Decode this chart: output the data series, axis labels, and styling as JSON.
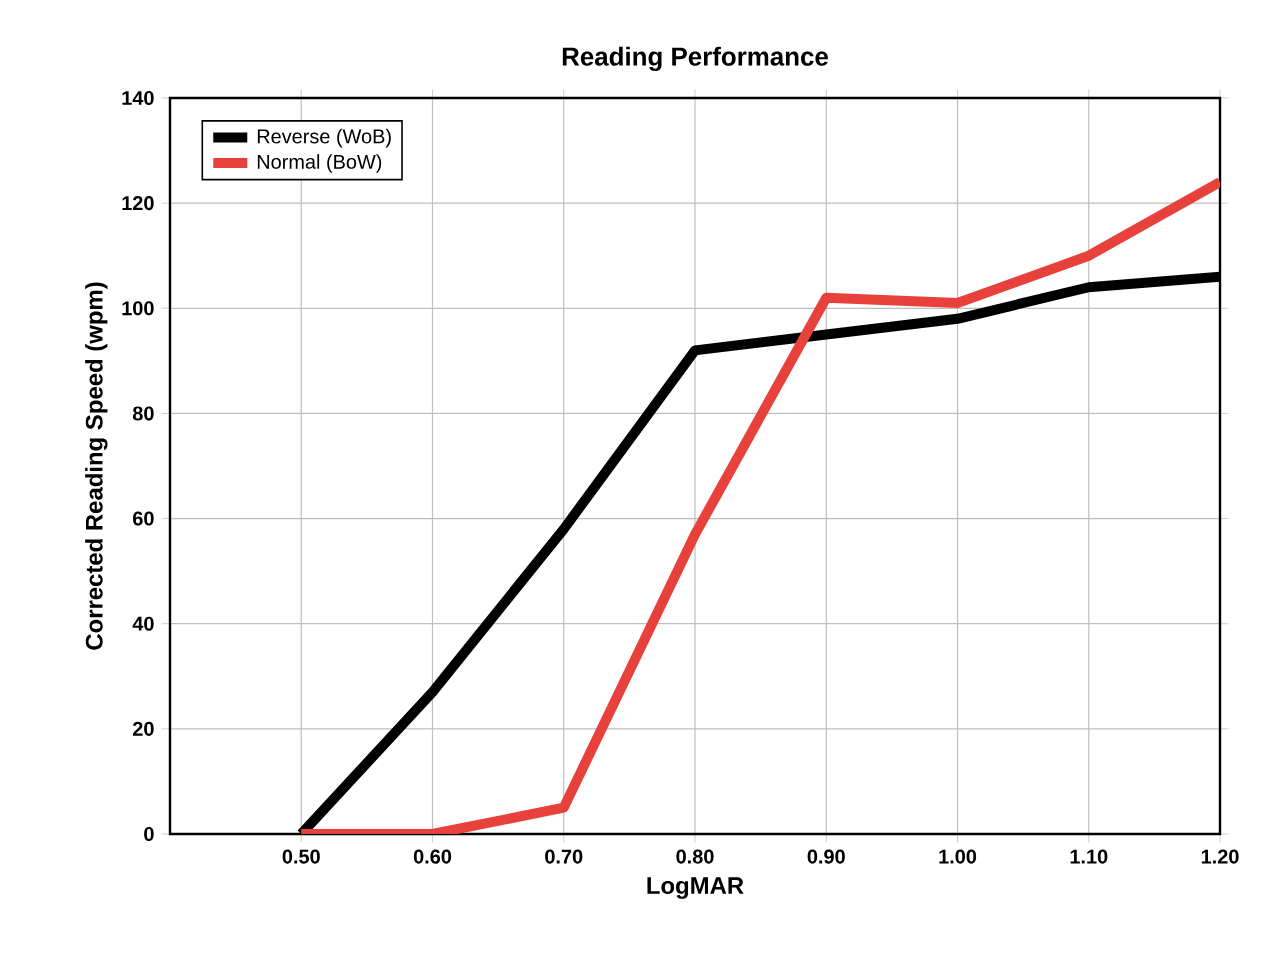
{
  "chart_data": {
    "type": "line",
    "title": "Reading Performance",
    "xlabel": "LogMAR",
    "ylabel": "Corrected Reading Speed (wpm)",
    "x": [
      0.5,
      0.6,
      0.7,
      0.8,
      0.9,
      1.0,
      1.1,
      1.2
    ],
    "series": [
      {
        "name": "Reverse (WoB)",
        "color": "#000000",
        "values": [
          0,
          27,
          58,
          92,
          95,
          98,
          104,
          106
        ]
      },
      {
        "name": "Normal (BoW)",
        "color": "#e8413c",
        "values": [
          0,
          0,
          5,
          57,
          102,
          101,
          110,
          124
        ]
      }
    ],
    "xlim": [
      0.4,
      1.2
    ],
    "ylim": [
      0,
      140
    ],
    "xticks": [
      {
        "value": 0.5,
        "label": "0.50"
      },
      {
        "value": 0.6,
        "label": "0.60"
      },
      {
        "value": 0.7,
        "label": "0.70"
      },
      {
        "value": 0.8,
        "label": "0.80"
      },
      {
        "value": 0.9,
        "label": "0.90"
      },
      {
        "value": 1.0,
        "label": "1.00"
      },
      {
        "value": 1.1,
        "label": "1.10"
      },
      {
        "value": 1.2,
        "label": "1.20"
      }
    ],
    "yticks": [
      0,
      20,
      40,
      60,
      80,
      100,
      120,
      140
    ],
    "grid": true,
    "legend": "top left",
    "marker": "none",
    "line_style": "solid"
  }
}
